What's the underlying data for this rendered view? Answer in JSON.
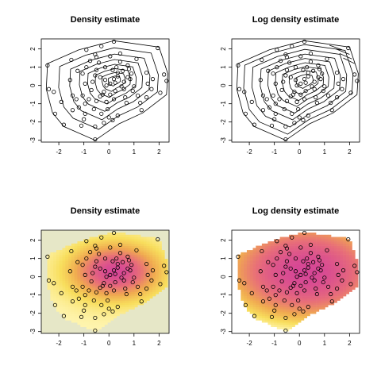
{
  "chart_data": [
    {
      "type": "scatter",
      "subtype": "contour",
      "title": "Density estimate",
      "xlabel": "",
      "ylabel": "",
      "xlim": [
        -2.7,
        2.4
      ],
      "ylim": [
        -3.1,
        2.55
      ],
      "xticks": [
        -2,
        -1,
        0,
        1,
        2
      ],
      "yticks": [
        -3,
        -2,
        -1,
        0,
        1,
        2
      ],
      "overlay": "contour lines",
      "grid": false
    },
    {
      "type": "scatter",
      "subtype": "contour",
      "title": "Log density estimate",
      "xlabel": "",
      "ylabel": "",
      "xlim": [
        -2.7,
        2.4
      ],
      "ylim": [
        -3.1,
        2.55
      ],
      "xticks": [
        -2,
        -1,
        0,
        1,
        2
      ],
      "yticks": [
        -3,
        -2,
        -1,
        0,
        1,
        2
      ],
      "overlay": "contour lines",
      "grid": false
    },
    {
      "type": "scatter",
      "subtype": "heatmap",
      "title": "Density estimate",
      "xlabel": "",
      "ylabel": "",
      "xlim": [
        -2.7,
        2.4
      ],
      "ylim": [
        -3.1,
        2.55
      ],
      "xticks": [
        -2,
        -1,
        0,
        1,
        2
      ],
      "yticks": [
        -3,
        -2,
        -1,
        0,
        1,
        2
      ],
      "overlay": "color image",
      "grid": false
    },
    {
      "type": "scatter",
      "subtype": "heatmap",
      "title": "Log density estimate",
      "xlabel": "",
      "ylabel": "",
      "xlim": [
        -2.7,
        2.4
      ],
      "ylim": [
        -3.1,
        2.55
      ],
      "xticks": [
        -2,
        -1,
        0,
        1,
        2
      ],
      "yticks": [
        -3,
        -2,
        -1,
        0,
        1,
        2
      ],
      "overlay": "color image",
      "grid": false
    }
  ],
  "points": [
    [
      0.2,
      2.4
    ],
    [
      -0.3,
      2.15
    ],
    [
      1.95,
      2.05
    ],
    [
      -0.9,
      1.95
    ],
    [
      0.45,
      1.75
    ],
    [
      -0.55,
      1.7
    ],
    [
      -0.5,
      1.55
    ],
    [
      0.05,
      1.6
    ],
    [
      -1.5,
      1.4
    ],
    [
      -0.75,
      1.35
    ],
    [
      -2.45,
      1.1
    ],
    [
      0.75,
      1.1
    ],
    [
      -0.9,
      1.0
    ],
    [
      -0.15,
      1.0
    ],
    [
      0.3,
      1.0
    ],
    [
      0.15,
      0.85
    ],
    [
      -0.5,
      0.85
    ],
    [
      -1.25,
      0.8
    ],
    [
      -1.05,
      0.65
    ],
    [
      0.55,
      0.8
    ],
    [
      0.9,
      0.65
    ],
    [
      1.5,
      0.7
    ],
    [
      0.35,
      0.7
    ],
    [
      -0.55,
      0.55
    ],
    [
      0.35,
      0.5
    ],
    [
      0.75,
      0.45
    ],
    [
      0.2,
      0.35
    ],
    [
      0.85,
      0.35
    ],
    [
      1.75,
      0.35
    ],
    [
      2.2,
      0.6
    ],
    [
      -1.55,
      0.3
    ],
    [
      -0.65,
      0.2
    ],
    [
      -0.95,
      0.1
    ],
    [
      0.05,
      0.1
    ],
    [
      1.55,
      0.1
    ],
    [
      2.3,
      0.25
    ],
    [
      -0.1,
      0.0
    ],
    [
      0.5,
      -0.05
    ],
    [
      -2.4,
      -0.2
    ],
    [
      -2.2,
      -0.35
    ],
    [
      -0.2,
      -0.35
    ],
    [
      0.25,
      -0.3
    ],
    [
      0.95,
      -0.3
    ],
    [
      -0.25,
      -0.5
    ],
    [
      -0.35,
      -0.6
    ],
    [
      1.15,
      -0.55
    ],
    [
      -1.05,
      -0.55
    ],
    [
      -1.9,
      -0.9
    ],
    [
      -0.8,
      -0.75
    ],
    [
      0.2,
      -0.75
    ],
    [
      0.65,
      -0.65
    ],
    [
      -1.3,
      -0.75
    ],
    [
      -1.45,
      -0.55
    ],
    [
      -0.5,
      -0.85
    ],
    [
      1.25,
      -0.95
    ],
    [
      1.5,
      -0.65
    ],
    [
      -0.95,
      -1.0
    ],
    [
      -0.1,
      -0.9
    ],
    [
      1.3,
      -1.35
    ],
    [
      -1.2,
      -1.2
    ],
    [
      -1.45,
      -1.35
    ],
    [
      -2.15,
      -1.55
    ],
    [
      -0.95,
      -1.55
    ],
    [
      -0.05,
      -1.3
    ],
    [
      -0.3,
      -1.55
    ],
    [
      0.35,
      -1.65
    ],
    [
      0.0,
      -1.75
    ],
    [
      0.15,
      -1.9
    ],
    [
      -1.0,
      -1.85
    ],
    [
      -1.8,
      -2.15
    ],
    [
      -0.55,
      -2.25
    ],
    [
      -1.1,
      -2.2
    ],
    [
      0.6,
      -0.2
    ],
    [
      -0.15,
      0.3
    ],
    [
      0.05,
      -0.5
    ],
    [
      -0.7,
      -0.25
    ],
    [
      0.45,
      1.3
    ],
    [
      1.1,
      1.45
    ],
    [
      0.7,
      -0.95
    ],
    [
      -0.35,
      0.45
    ],
    [
      1.0,
      -0.05
    ],
    [
      -0.6,
      -1.3
    ],
    [
      0.25,
      0.15
    ],
    [
      0.8,
      0.9
    ],
    [
      2.05,
      -0.4
    ],
    [
      -0.4,
      1.25
    ],
    [
      0.6,
      0.2
    ],
    [
      -0.2,
      -2.05
    ],
    [
      1.7,
      -0.2
    ],
    [
      -0.55,
      -2.95
    ]
  ]
}
